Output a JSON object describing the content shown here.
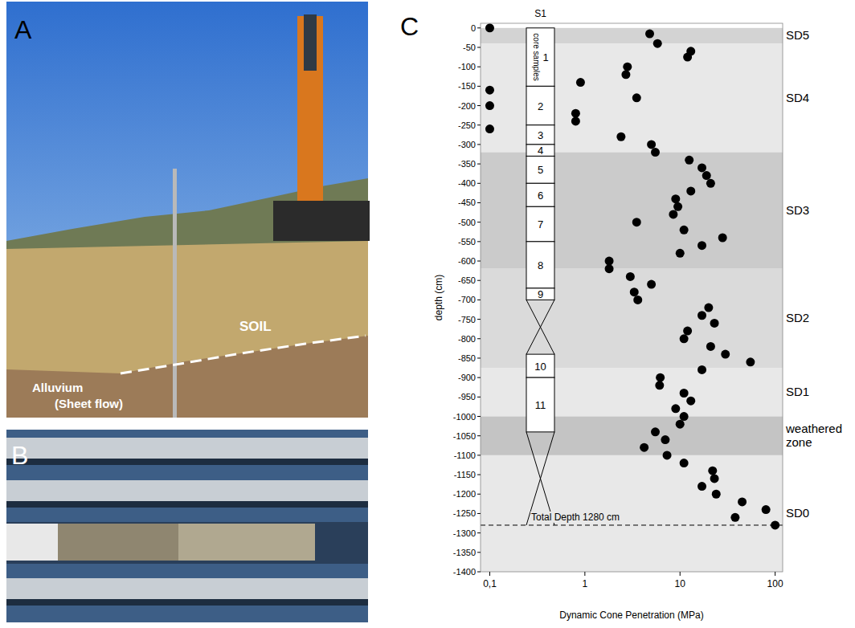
{
  "chart_data": {
    "type": "scatter",
    "x_label": "Dynamic Cone Penetration (MPa)",
    "y_label": "depth (cm)",
    "log": "x",
    "color": "#000000",
    "marker": "circle",
    "xlim": [
      0.08,
      120
    ],
    "xticks": [
      {
        "value": 0.1,
        "label": "0,1"
      },
      1,
      10,
      100
    ],
    "ylim": [
      -1400,
      12
    ],
    "yticks": [
      0,
      -50,
      -100,
      -150,
      -200,
      -250,
      -300,
      -350,
      -400,
      -450,
      -500,
      -550,
      -600,
      -650,
      -700,
      -750,
      -800,
      -850,
      -900,
      -950,
      -1000,
      -1050,
      -1100,
      -1150,
      -1200,
      -1250,
      -1300,
      -1350,
      -1400
    ],
    "x": [
      0.1,
      0.1,
      0.1,
      0.1,
      4.8,
      5.8,
      13,
      12,
      2.8,
      2.7,
      0.9,
      3.5,
      0.8,
      0.8,
      2.4,
      5,
      5.5,
      12.5,
      17,
      19,
      21,
      13,
      9,
      9.5,
      8.5,
      3.5,
      11,
      28,
      17,
      10,
      1.8,
      1.8,
      3,
      5,
      3.3,
      3.6,
      20,
      17,
      23,
      12,
      11,
      21,
      30,
      55,
      17,
      6.2,
      6.1,
      11,
      13,
      9,
      11,
      10,
      5.5,
      7,
      4.2,
      7.3,
      11,
      22,
      23,
      17,
      24,
      45,
      80,
      38,
      100
    ],
    "values": [
      0,
      -160,
      -200,
      -260,
      -15,
      -40,
      -60,
      -75,
      -100,
      -120,
      -140,
      -180,
      -220,
      -240,
      -280,
      -300,
      -320,
      -340,
      -360,
      -380,
      -400,
      -420,
      -440,
      -460,
      -480,
      -500,
      -520,
      -540,
      -560,
      -580,
      -600,
      -620,
      -640,
      -660,
      -680,
      -700,
      -720,
      -740,
      -760,
      -780,
      -800,
      -820,
      -840,
      -860,
      -880,
      -900,
      -920,
      -940,
      -960,
      -980,
      -1000,
      -1020,
      -1040,
      -1060,
      -1080,
      -1100,
      -1120,
      -1140,
      -1160,
      -1180,
      -1200,
      -1220,
      -1240,
      -1260,
      -1280
    ],
    "zones": [
      {
        "label": "SD5",
        "top": 0,
        "bottom": -40,
        "color": "#d3d3d3"
      },
      {
        "label": "SD4",
        "top": -40,
        "bottom": -320,
        "color": "#e8e8e8"
      },
      {
        "label": "SD3",
        "top": -320,
        "bottom": -620,
        "color": "#cbcbcb"
      },
      {
        "label": "SD2",
        "top": -620,
        "bottom": -875,
        "color": "#dadada"
      },
      {
        "label": "SD1",
        "top": -875,
        "bottom": -1000,
        "color": "#e8e8e8"
      },
      {
        "label": "weathered zone",
        "top": -1000,
        "bottom": -1100,
        "color": "#c4c4c4"
      },
      {
        "label": "SD0",
        "top": -1100,
        "bottom": -1400,
        "color": "#e8e8e8"
      }
    ],
    "core_samples": {
      "title": "S1",
      "label": "core samples",
      "samples": [
        {
          "label": "1",
          "top": 0,
          "bottom": -150
        },
        {
          "label": "2",
          "top": -150,
          "bottom": -250
        },
        {
          "label": "3",
          "top": -250,
          "bottom": -300
        },
        {
          "label": "4",
          "top": -300,
          "bottom": -330
        },
        {
          "label": "5",
          "top": -330,
          "bottom": -400
        },
        {
          "label": "6",
          "top": -400,
          "bottom": -460
        },
        {
          "label": "7",
          "top": -460,
          "bottom": -550
        },
        {
          "label": "8",
          "top": -550,
          "bottom": -670
        },
        {
          "label": "9",
          "top": -670,
          "bottom": -700
        },
        {
          "label": "10",
          "top": -840,
          "bottom": -900
        },
        {
          "label": "11",
          "top": -900,
          "bottom": -1040
        }
      ],
      "no_recovery": [
        {
          "top": -700,
          "bottom": -840
        },
        {
          "top": -1040,
          "bottom": -1280
        }
      ],
      "total_depth": -1280,
      "total_depth_label": "Total Depth 1280 cm"
    }
  },
  "figure": {
    "panel_labels": [
      "A",
      "B",
      "C"
    ],
    "photo_a": {
      "soil_label": "SOIL",
      "alluvium_label": [
        "Alluvium",
        "(Sheet flow)"
      ]
    }
  }
}
